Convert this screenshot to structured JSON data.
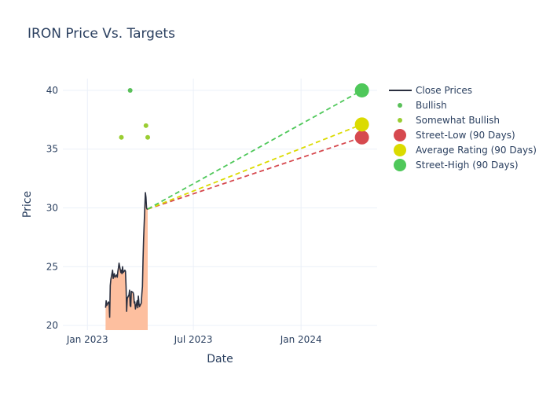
{
  "chart_data": {
    "type": "line",
    "title": "IRON Price Vs. Targets",
    "xlabel": "Date",
    "ylabel": "Price",
    "x_ticks": [
      {
        "label": "Jan 2023",
        "date": "2023-01-01"
      },
      {
        "label": "Jul 2023",
        "date": "2023-07-01"
      },
      {
        "label": "Jan 2024",
        "date": "2024-01-01"
      }
    ],
    "y_ticks": [
      20,
      25,
      30,
      35,
      40
    ],
    "xlim": [
      "2022-11-20",
      "2024-05-10"
    ],
    "ylim": [
      19.6,
      41
    ],
    "grid": true,
    "legend_position": "right",
    "colors": {
      "close": "#2a2f3f",
      "fill": "#fdbf9f",
      "bullish": "#5ac05a",
      "somewhat_bullish": "#9acd32",
      "street_low": "#d6494f",
      "average": "#dbdb00",
      "street_high": "#4fc85a",
      "grid": "#ebf0f8"
    },
    "close_prices": [
      [
        "2023-02-01",
        21.5
      ],
      [
        "2023-02-02",
        22.1
      ],
      [
        "2023-02-03",
        21.7
      ],
      [
        "2023-02-06",
        22.0
      ],
      [
        "2023-02-07",
        21.9
      ],
      [
        "2023-02-08",
        20.7
      ],
      [
        "2023-02-09",
        23.4
      ],
      [
        "2023-02-10",
        23.9
      ],
      [
        "2023-02-13",
        24.7
      ],
      [
        "2023-02-14",
        24.0
      ],
      [
        "2023-02-15",
        24.3
      ],
      [
        "2023-02-16",
        24.4
      ],
      [
        "2023-02-17",
        24.1
      ],
      [
        "2023-02-20",
        24.3
      ],
      [
        "2023-02-21",
        24.1
      ],
      [
        "2023-02-22",
        24.6
      ],
      [
        "2023-02-23",
        24.9
      ],
      [
        "2023-02-24",
        25.3
      ],
      [
        "2023-02-27",
        24.5
      ],
      [
        "2023-02-28",
        24.7
      ],
      [
        "2023-03-01",
        24.4
      ],
      [
        "2023-03-02",
        25.0
      ],
      [
        "2023-03-03",
        24.5
      ],
      [
        "2023-03-06",
        24.7
      ],
      [
        "2023-03-07",
        24.6
      ],
      [
        "2023-03-08",
        23.3
      ],
      [
        "2023-03-09",
        21.2
      ],
      [
        "2023-03-10",
        22.3
      ],
      [
        "2023-03-13",
        22.6
      ],
      [
        "2023-03-14",
        23.0
      ],
      [
        "2023-03-15",
        21.7
      ],
      [
        "2023-03-16",
        21.6
      ],
      [
        "2023-03-17",
        22.9
      ],
      [
        "2023-03-20",
        22.8
      ],
      [
        "2023-03-21",
        22.6
      ],
      [
        "2023-03-22",
        21.9
      ],
      [
        "2023-03-23",
        22.0
      ],
      [
        "2023-03-24",
        21.4
      ],
      [
        "2023-03-27",
        22.1
      ],
      [
        "2023-03-28",
        21.5
      ],
      [
        "2023-03-29",
        22.5
      ],
      [
        "2023-03-30",
        21.9
      ],
      [
        "2023-03-31",
        21.6
      ],
      [
        "2023-04-03",
        21.9
      ],
      [
        "2023-04-04",
        22.7
      ],
      [
        "2023-04-05",
        23.3
      ],
      [
        "2023-04-06",
        25.6
      ],
      [
        "2023-04-07",
        27.4
      ],
      [
        "2023-04-10",
        31.3
      ],
      [
        "2023-04-11",
        30.9
      ],
      [
        "2023-04-12",
        30.0
      ],
      [
        "2023-04-13",
        29.9
      ],
      [
        "2023-04-14",
        29.9
      ]
    ],
    "bullish": [
      {
        "date": "2023-03-15",
        "value": 40
      }
    ],
    "somewhat_bullish": [
      {
        "date": "2023-02-28",
        "value": 36
      },
      {
        "date": "2023-04-11",
        "value": 37
      },
      {
        "date": "2023-04-14",
        "value": 36
      }
    ],
    "targets": {
      "start": {
        "date": "2023-04-14",
        "value": 29.9
      },
      "target_date": "2024-04-14",
      "street_low": 36,
      "average": 37.1,
      "street_high": 40
    },
    "legend": [
      {
        "label": "Close Prices",
        "kind": "line",
        "color": "#2a2f3f"
      },
      {
        "label": "Bullish",
        "kind": "dot",
        "color": "#5ac05a"
      },
      {
        "label": "Somewhat Bullish",
        "kind": "dot",
        "color": "#9acd32"
      },
      {
        "label": "Street-Low (90 Days)",
        "kind": "big",
        "color": "#d6494f"
      },
      {
        "label": "Average Rating (90 Days)",
        "kind": "big",
        "color": "#dbdb00"
      },
      {
        "label": "Street-High (90 Days)",
        "kind": "big",
        "color": "#4fc85a"
      }
    ]
  }
}
